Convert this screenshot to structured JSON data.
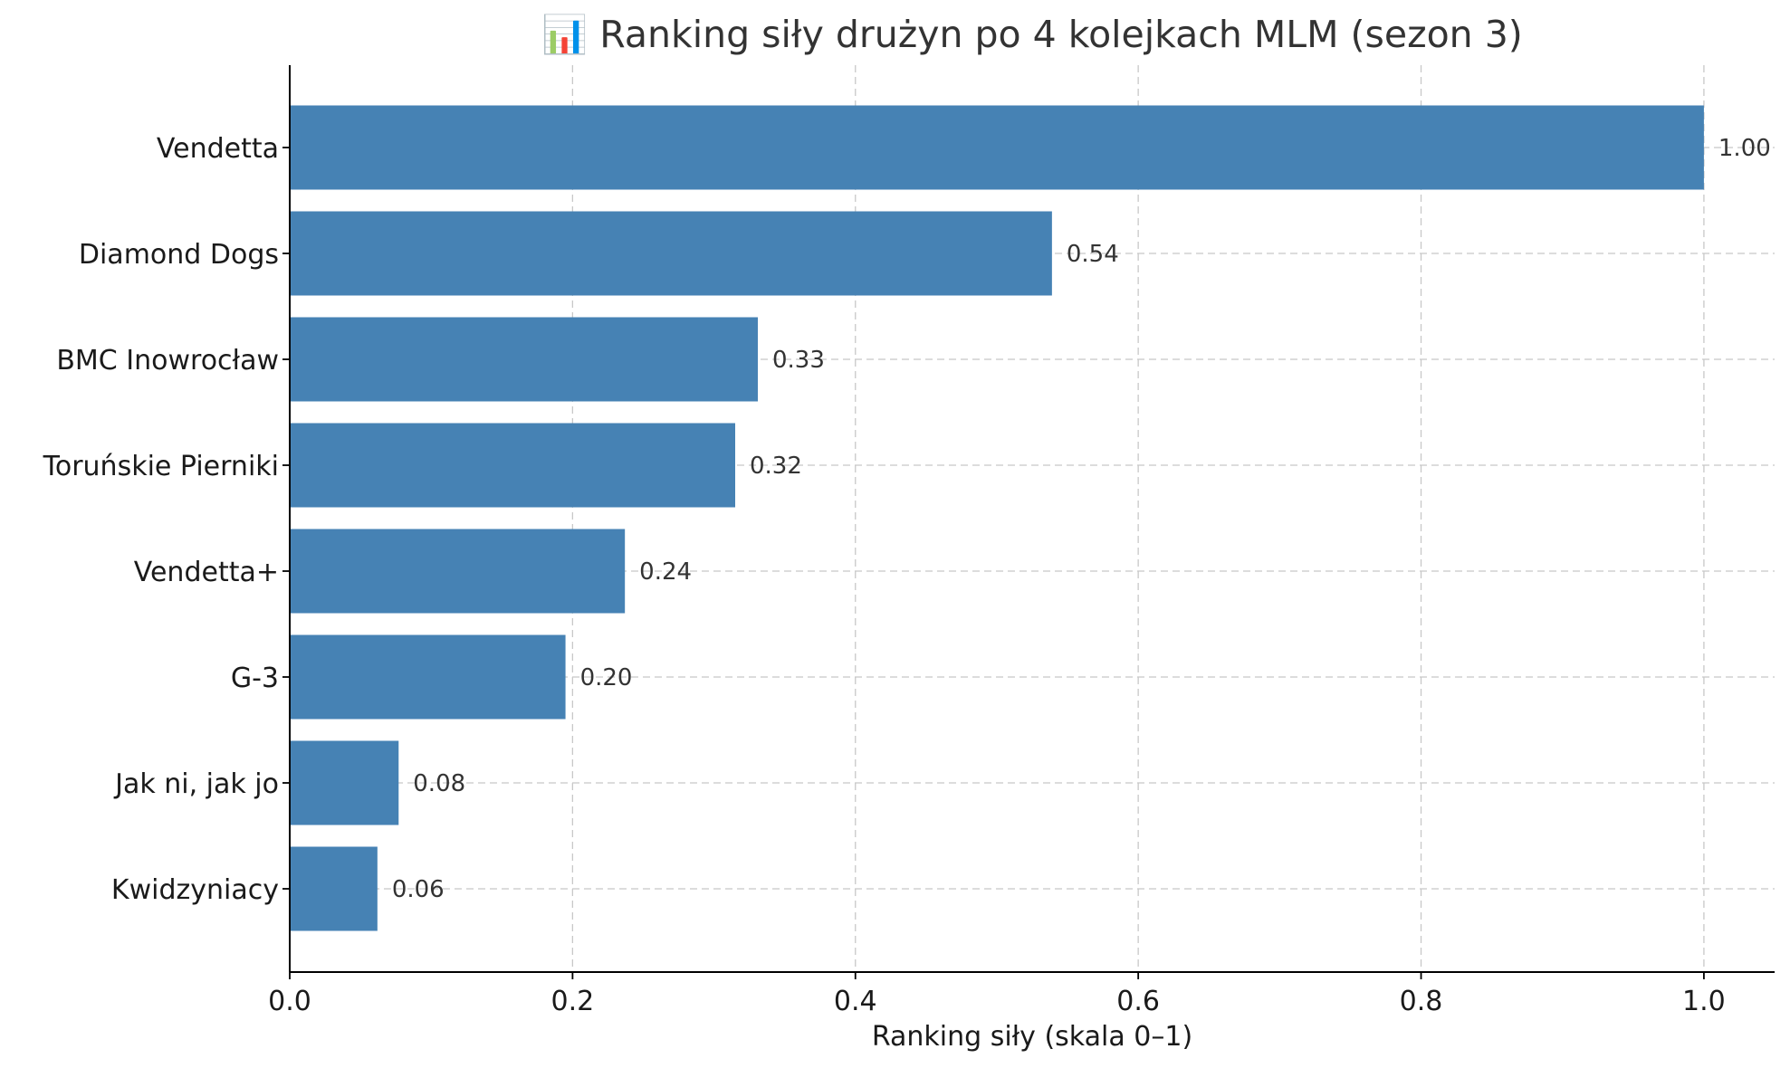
{
  "chart_data": {
    "type": "bar",
    "orientation": "horizontal",
    "title": "📊 Ranking siły drużyn po 4 kolejkach MLM (sezon 3)",
    "xlabel": "Ranking siły (skala 0–1)",
    "ylabel": "",
    "categories": [
      "Vendetta",
      "Diamond Dogs",
      "BMC Inowrocław",
      "Toruńskie Pierniki",
      "Vendetta+",
      "G-3",
      "Jak ni, jak jo",
      "Kwidzyniacy"
    ],
    "values": [
      1.0,
      0.539,
      0.331,
      0.315,
      0.237,
      0.195,
      0.077,
      0.062
    ],
    "value_labels": [
      "1.00",
      "0.54",
      "0.33",
      "0.32",
      "0.24",
      "0.20",
      "0.08",
      "0.06"
    ],
    "xlim": [
      0,
      1.05
    ],
    "xticks": [
      0.0,
      0.2,
      0.4,
      0.6,
      0.8,
      1.0
    ],
    "xtick_labels": [
      "0.0",
      "0.2",
      "0.4",
      "0.6",
      "0.8",
      "1.0"
    ],
    "grid": true,
    "bar_color": "#4682b4"
  }
}
